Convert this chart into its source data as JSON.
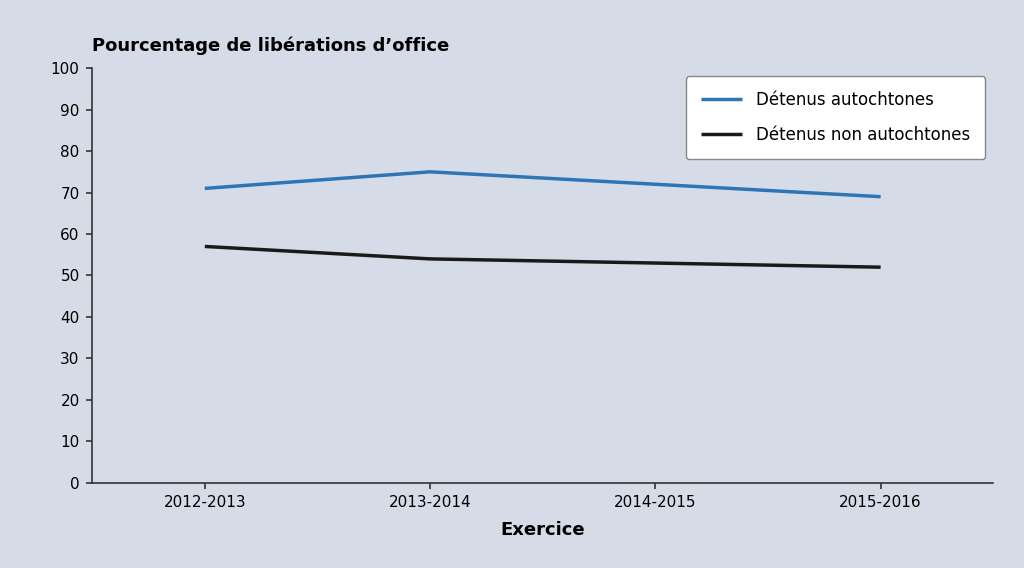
{
  "title": "Pourcentage de libérations d’office",
  "xlabel": "Exercice",
  "ylabel": "",
  "categories": [
    "2012-2013",
    "2013-2014",
    "2014-2015",
    "2015-2016"
  ],
  "autochtones": [
    71,
    75,
    72,
    69
  ],
  "non_autochtones": [
    57,
    54,
    53,
    52
  ],
  "autochtones_label": "Détenus autochtones",
  "non_autochtones_label": "Détenus non autochtones",
  "autochtones_color": "#2E75B6",
  "non_autochtones_color": "#1a1a1a",
  "background_color": "#D6DBE8",
  "ylim": [
    0,
    100
  ],
  "yticks": [
    0,
    10,
    20,
    30,
    40,
    50,
    60,
    70,
    80,
    90,
    100
  ],
  "title_fontsize": 13,
  "axis_label_fontsize": 13,
  "tick_fontsize": 11,
  "legend_fontsize": 12,
  "line_width": 2.5
}
